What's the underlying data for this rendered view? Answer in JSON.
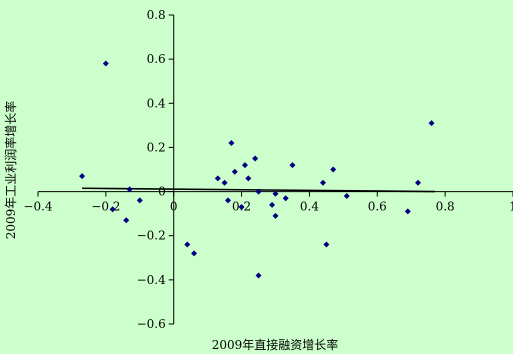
{
  "chart_data": {
    "type": "scatter",
    "xlabel": "2009年直接融资增长率",
    "ylabel": "2009年工业利润率增长率",
    "xlim": [
      -0.4,
      1.0
    ],
    "ylim": [
      -0.6,
      0.8
    ],
    "xticks": [
      -0.4,
      -0.2,
      0,
      0.2,
      0.4,
      0.6,
      0.8,
      1.0
    ],
    "xtick_labels": [
      "−0.4",
      "−0.2",
      "0",
      "0.2",
      "0.4",
      "0.6",
      "0.8",
      "1"
    ],
    "yticks": [
      -0.6,
      -0.4,
      -0.2,
      0,
      0.2,
      0.4,
      0.6,
      0.8
    ],
    "ytick_labels": [
      "−0.6",
      "−0.4",
      "−0.2",
      "0",
      "0.2",
      "0.4",
      "0.6",
      "0.8"
    ],
    "grid": false,
    "legend": "none",
    "marker_color": "#000080",
    "trendline": {
      "x": [
        -0.27,
        0.77
      ],
      "y": [
        0.015,
        0.0
      ]
    },
    "points": [
      {
        "x": -0.27,
        "y": 0.07
      },
      {
        "x": -0.2,
        "y": 0.58
      },
      {
        "x": -0.18,
        "y": -0.08
      },
      {
        "x": -0.14,
        "y": -0.13
      },
      {
        "x": -0.13,
        "y": 0.01
      },
      {
        "x": -0.1,
        "y": -0.04
      },
      {
        "x": 0.04,
        "y": -0.24
      },
      {
        "x": 0.06,
        "y": -0.28
      },
      {
        "x": 0.13,
        "y": 0.06
      },
      {
        "x": 0.15,
        "y": 0.04
      },
      {
        "x": 0.16,
        "y": -0.04
      },
      {
        "x": 0.17,
        "y": 0.22
      },
      {
        "x": 0.18,
        "y": 0.09
      },
      {
        "x": 0.2,
        "y": -0.07
      },
      {
        "x": 0.21,
        "y": 0.12
      },
      {
        "x": 0.22,
        "y": 0.06
      },
      {
        "x": 0.24,
        "y": 0.15
      },
      {
        "x": 0.25,
        "y": 0.0
      },
      {
        "x": 0.25,
        "y": -0.38
      },
      {
        "x": 0.29,
        "y": -0.06
      },
      {
        "x": 0.3,
        "y": -0.01
      },
      {
        "x": 0.3,
        "y": -0.11
      },
      {
        "x": 0.33,
        "y": -0.03
      },
      {
        "x": 0.35,
        "y": 0.12
      },
      {
        "x": 0.44,
        "y": 0.04
      },
      {
        "x": 0.45,
        "y": -0.24
      },
      {
        "x": 0.47,
        "y": 0.1
      },
      {
        "x": 0.51,
        "y": -0.02
      },
      {
        "x": 0.69,
        "y": -0.09
      },
      {
        "x": 0.72,
        "y": 0.04
      },
      {
        "x": 0.76,
        "y": 0.31
      }
    ]
  }
}
